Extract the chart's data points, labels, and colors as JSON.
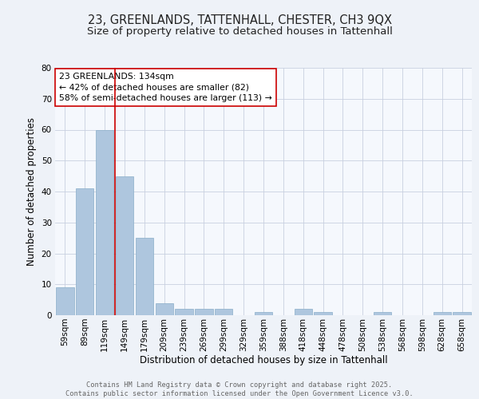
{
  "title1": "23, GREENLANDS, TATTENHALL, CHESTER, CH3 9QX",
  "title2": "Size of property relative to detached houses in Tattenhall",
  "xlabel": "Distribution of detached houses by size in Tattenhall",
  "ylabel": "Number of detached properties",
  "categories": [
    "59sqm",
    "89sqm",
    "119sqm",
    "149sqm",
    "179sqm",
    "209sqm",
    "239sqm",
    "269sqm",
    "299sqm",
    "329sqm",
    "359sqm",
    "388sqm",
    "418sqm",
    "448sqm",
    "478sqm",
    "508sqm",
    "538sqm",
    "568sqm",
    "598sqm",
    "628sqm",
    "658sqm"
  ],
  "values": [
    9,
    41,
    60,
    45,
    25,
    4,
    2,
    2,
    2,
    0,
    1,
    0,
    2,
    1,
    0,
    0,
    1,
    0,
    0,
    1,
    1
  ],
  "bar_color": "#aec6de",
  "bar_edge_color": "#8aaec8",
  "vline_color": "#cc0000",
  "vline_pos": 2.5,
  "ylim": [
    0,
    80
  ],
  "yticks": [
    0,
    10,
    20,
    30,
    40,
    50,
    60,
    70,
    80
  ],
  "annotation_text": "23 GREENLANDS: 134sqm\n← 42% of detached houses are smaller (82)\n58% of semi-detached houses are larger (113) →",
  "annotation_box_color": "#ffffff",
  "annotation_border_color": "#cc0000",
  "footer_line1": "Contains HM Land Registry data © Crown copyright and database right 2025.",
  "footer_line2": "Contains public sector information licensed under the Open Government Licence v3.0.",
  "bg_color": "#eef2f8",
  "plot_bg_color": "#f5f8fd",
  "grid_color": "#c8d0e0",
  "title_fontsize": 10.5,
  "subtitle_fontsize": 9.5,
  "tick_fontsize": 7.5,
  "label_fontsize": 8.5,
  "annotation_fontsize": 7.8,
  "footer_fontsize": 6.2
}
